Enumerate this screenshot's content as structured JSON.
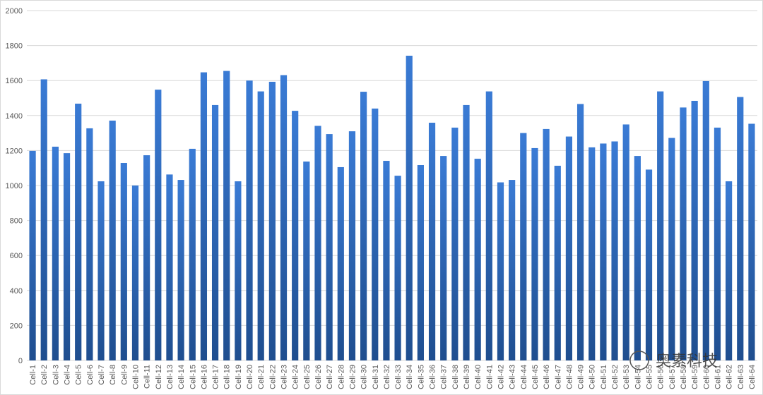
{
  "chart_data": {
    "type": "bar",
    "categories": [
      "Cell-1",
      "Cell-2",
      "Cell-3",
      "Cell-4",
      "Cell-5",
      "Cell-6",
      "Cell-7",
      "Cell-8",
      "Cell-9",
      "Cell-10",
      "Cell-11",
      "Cell-12",
      "Cell-13",
      "Cell-14",
      "Cell-15",
      "Cell-16",
      "Cell-17",
      "Cell-18",
      "Cell-19",
      "Cell-20",
      "Cell-21",
      "Cell-22",
      "Cell-23",
      "Cell-24",
      "Cell-25",
      "Cell-26",
      "Cell-27",
      "Cell-28",
      "Cell-29",
      "Cell-30",
      "Cell-31",
      "Cell-32",
      "Cell-33",
      "Cell-34",
      "Cell-35",
      "Cell-36",
      "Cell-37",
      "Cell-38",
      "Cell-39",
      "Cell-40",
      "Cell-41",
      "Cell-42",
      "Cell-43",
      "Cell-44",
      "Cell-45",
      "Cell-46",
      "Cell-47",
      "Cell-48",
      "Cell-49",
      "Cell-50",
      "Cell-51",
      "Cell-52",
      "Cell-53",
      "Cell-54",
      "Cell-55",
      "Cell-56",
      "Cell-57",
      "Cell-58",
      "Cell-59",
      "Cell-60",
      "Cell-61",
      "Cell-62",
      "Cell-63",
      "Cell-64"
    ],
    "values": [
      1198,
      1607,
      1222,
      1185,
      1468,
      1327,
      1024,
      1371,
      1129,
      1000,
      1173,
      1548,
      1063,
      1032,
      1210,
      1647,
      1460,
      1655,
      1024,
      1600,
      1538,
      1593,
      1631,
      1427,
      1137,
      1341,
      1294,
      1105,
      1310,
      1536,
      1440,
      1141,
      1056,
      1742,
      1117,
      1359,
      1169,
      1331,
      1460,
      1153,
      1538,
      1018,
      1032,
      1300,
      1214,
      1323,
      1113,
      1280,
      1466,
      1218,
      1240,
      1252,
      1349,
      1169,
      1091,
      1538,
      1272,
      1446,
      1484,
      1597,
      1331,
      1024,
      1506,
      1353
    ],
    "color": "#3a7bd5",
    "ylim": [
      0,
      2000
    ],
    "yticks": [
      0,
      200,
      400,
      600,
      800,
      1000,
      1200,
      1400,
      1600,
      1800,
      2000
    ],
    "grid": true,
    "watermark": "奥素科技"
  }
}
